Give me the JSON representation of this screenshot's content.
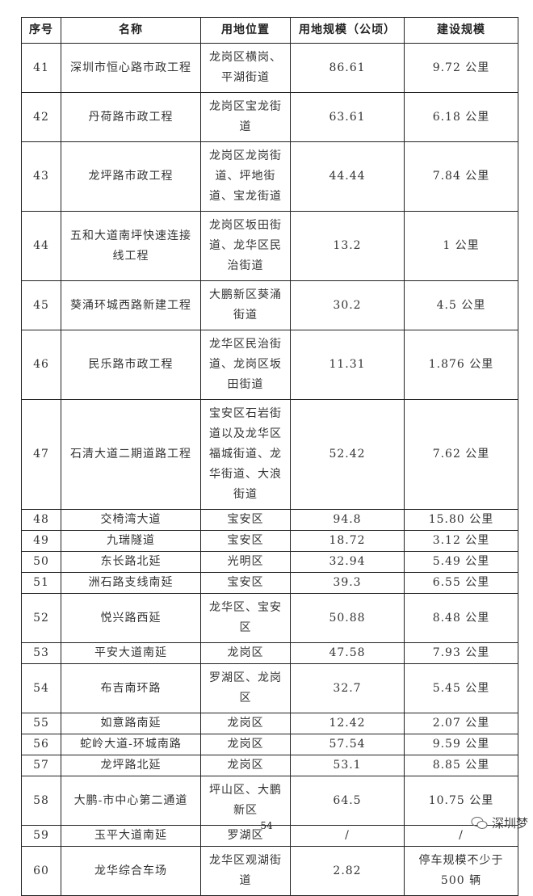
{
  "table": {
    "headers": [
      "序号",
      "名称",
      "用地位置",
      "用地规模（公顷）",
      "建设规模"
    ],
    "rows": [
      {
        "no": "41",
        "name": "深圳市恒心路市政工程",
        "location": "龙岗区横岗、平湖街道",
        "area": "86.61",
        "scale": "9.72 公里"
      },
      {
        "no": "42",
        "name": "丹荷路市政工程",
        "location": "龙岗区宝龙街道",
        "area": "63.61",
        "scale": "6.18 公里"
      },
      {
        "no": "43",
        "name": "龙坪路市政工程",
        "location": "龙岗区龙岗街道、坪地街道、宝龙街道",
        "area": "44.44",
        "scale": "7.84 公里"
      },
      {
        "no": "44",
        "name": "五和大道南坪快速连接线工程",
        "location": "龙岗区坂田街道、龙华区民治街道",
        "area": "13.2",
        "scale": "1 公里"
      },
      {
        "no": "45",
        "name": "葵涌环城西路新建工程",
        "location": "大鹏新区葵涌街道",
        "area": "30.2",
        "scale": "4.5 公里"
      },
      {
        "no": "46",
        "name": "民乐路市政工程",
        "location": "龙华区民治街道、龙岗区坂田街道",
        "area": "11.31",
        "scale": "1.876 公里"
      },
      {
        "no": "47",
        "name": "石清大道二期道路工程",
        "location": "宝安区石岩街道以及龙华区福城街道、龙华街道、大浪街道",
        "area": "52.42",
        "scale": "7.62 公里"
      },
      {
        "no": "48",
        "name": "交椅湾大道",
        "location": "宝安区",
        "area": "94.8",
        "scale": "15.80 公里"
      },
      {
        "no": "49",
        "name": "九瑞隧道",
        "location": "宝安区",
        "area": "18.72",
        "scale": "3.12 公里"
      },
      {
        "no": "50",
        "name": "东长路北延",
        "location": "光明区",
        "area": "32.94",
        "scale": "5.49 公里"
      },
      {
        "no": "51",
        "name": "洲石路支线南延",
        "location": "宝安区",
        "area": "39.3",
        "scale": "6.55 公里"
      },
      {
        "no": "52",
        "name": "悦兴路西延",
        "location": "龙华区、宝安区",
        "area": "50.88",
        "scale": "8.48 公里"
      },
      {
        "no": "53",
        "name": "平安大道南延",
        "location": "龙岗区",
        "area": "47.58",
        "scale": "7.93 公里"
      },
      {
        "no": "54",
        "name": "布吉南环路",
        "location": "罗湖区、龙岗区",
        "area": "32.7",
        "scale": "5.45 公里"
      },
      {
        "no": "55",
        "name": "如意路南延",
        "location": "龙岗区",
        "area": "12.42",
        "scale": "2.07 公里"
      },
      {
        "no": "56",
        "name": "蛇岭大道-环城南路",
        "location": "龙岗区",
        "area": "57.54",
        "scale": "9.59 公里"
      },
      {
        "no": "57",
        "name": "龙坪路北延",
        "location": "龙岗区",
        "area": "53.1",
        "scale": "8.85 公里"
      },
      {
        "no": "58",
        "name": "大鹏-市中心第二通道",
        "location": "坪山区、大鹏新区",
        "area": "64.5",
        "scale": "10.75 公里"
      },
      {
        "no": "59",
        "name": "玉平大道南延",
        "location": "罗湖区",
        "area": "/",
        "scale": "/"
      },
      {
        "no": "60",
        "name": "龙华综合车场",
        "location": "龙华区观湖街道",
        "area": "2.82",
        "scale": "停车规模不少于 500 辆"
      }
    ]
  },
  "page_number": "54",
  "watermark": {
    "text": "深圳梦",
    "icon": "wechat-icon"
  }
}
